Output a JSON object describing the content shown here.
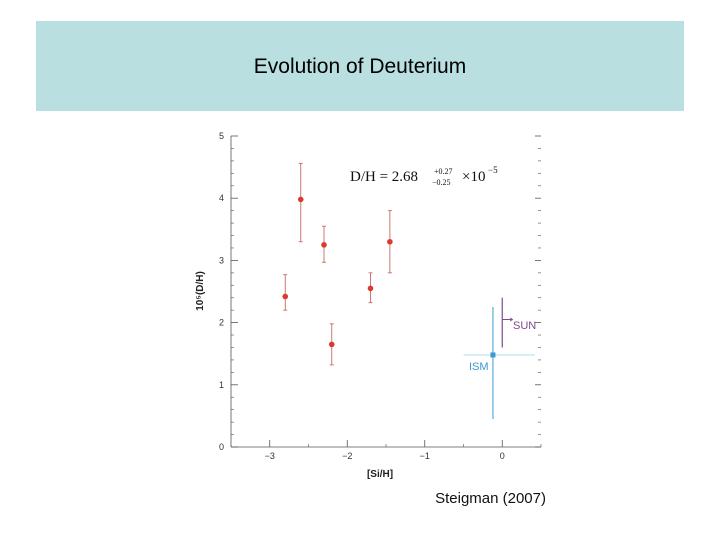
{
  "slide": {
    "title": "Evolution of Deuterium",
    "citation": "Steigman (2007)"
  },
  "colors": {
    "band": "#b9dfe1",
    "points": "#d93b30",
    "sun": "#7b4a8c",
    "ism": "#3a9ad0",
    "ism_line": "#d6eef8"
  },
  "chart_data": {
    "type": "scatter",
    "xlabel": "[Si/H]",
    "ylabel": "10⁵(D/H)",
    "xlim": [
      -3.5,
      0.5
    ],
    "ylim": [
      0,
      5
    ],
    "x_ticks": [
      -3,
      -2,
      -1,
      0
    ],
    "x_tick_labels": [
      "−3",
      "−2",
      "−1",
      "0"
    ],
    "y_ticks": [
      0,
      1,
      2,
      3,
      4,
      5
    ],
    "y_tick_labels": [
      "0",
      "1",
      "2",
      "3",
      "4",
      "5"
    ],
    "grid": false,
    "series": [
      {
        "points": [
          {
            "x": -2.8,
            "y": 2.42,
            "err_lo": 0.22,
            "err_hi": 0.35
          },
          {
            "x": -2.6,
            "y": 3.98,
            "err_lo": 0.68,
            "err_hi": 0.58
          },
          {
            "x": -2.3,
            "y": 3.25,
            "err_lo": 0.28,
            "err_hi": 0.3
          },
          {
            "x": -2.2,
            "y": 1.65,
            "err_lo": 0.33,
            "err_hi": 0.33
          },
          {
            "x": -1.7,
            "y": 2.55,
            "err_lo": 0.23,
            "err_hi": 0.25
          },
          {
            "x": -1.45,
            "y": 3.3,
            "err_lo": 0.5,
            "err_hi": 0.5
          }
        ]
      },
      {
        "name": "SUN",
        "points": [
          {
            "x": 0,
            "y": 2.05,
            "err_lo": 0.45,
            "err_hi": 0.35
          }
        ]
      },
      {
        "name": "ISM",
        "points": [
          {
            "x": -0.12,
            "y": 1.48,
            "err_lo": 1.03,
            "err_hi": 0.77,
            "xerr_lo": 0.38,
            "xerr_hi": 0.54
          }
        ]
      }
    ],
    "annotations": [
      {
        "text_main": "D/H = 2.68",
        "sup": "+0.27",
        "sub": "−0.25",
        "text_tail": "×10",
        "tail_sup": "−5"
      },
      {
        "text": "SUN"
      },
      {
        "text": "ISM"
      }
    ]
  }
}
